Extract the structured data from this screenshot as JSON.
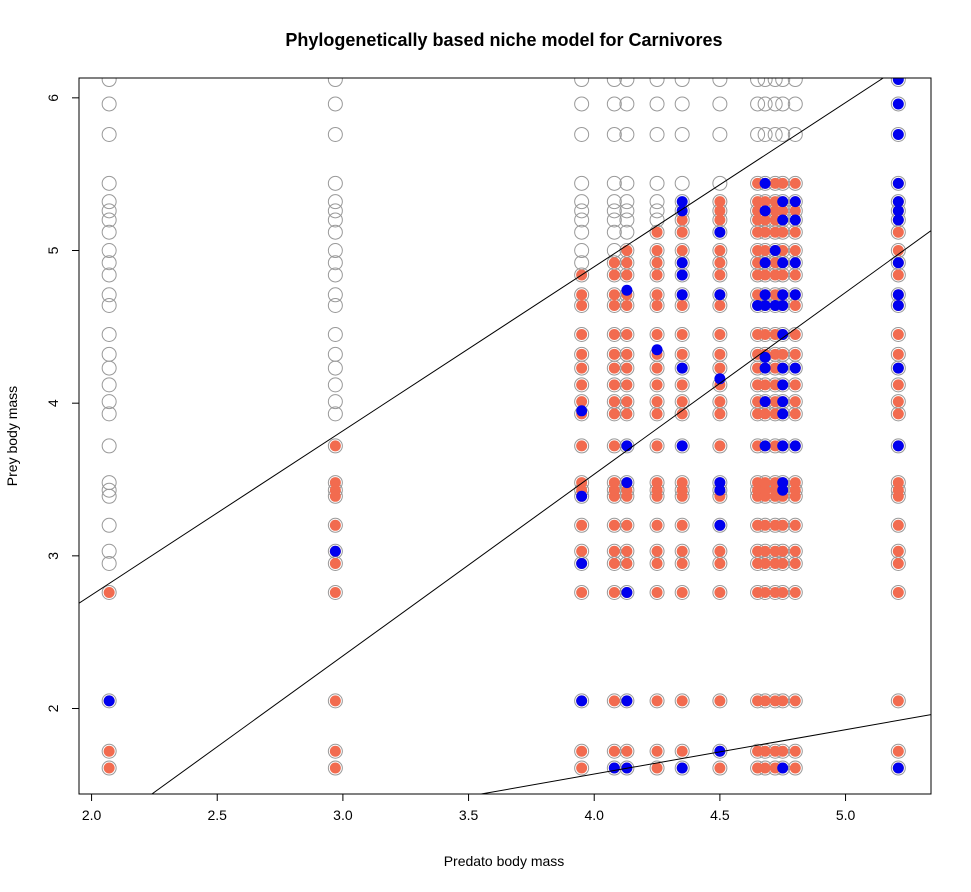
{
  "chart_data": {
    "type": "scatter",
    "title": "Phylogenetically based niche model for Carnivores",
    "xlabel": "Predato body mass",
    "ylabel": "Prey body mass",
    "xlim": [
      1.95,
      5.34
    ],
    "ylim": [
      1.44,
      6.13
    ],
    "xticks": [
      "2.0",
      "2.5",
      "3.0",
      "3.5",
      "4.0",
      "4.5",
      "5.0"
    ],
    "yticks": [
      "2",
      "3",
      "4",
      "5",
      "6"
    ],
    "colors": {
      "candidate": "#999999",
      "predicted": "#f26b4f",
      "observed": "#0000ee",
      "line": "#000000"
    },
    "predator_x": [
      2.07,
      2.97,
      3.95,
      4.08,
      4.13,
      4.25,
      4.35,
      4.5,
      4.65,
      4.68,
      4.72,
      4.75,
      4.8,
      5.21
    ],
    "prey_y": [
      1.61,
      1.72,
      2.05,
      2.76,
      2.95,
      3.03,
      3.2,
      3.39,
      3.43,
      3.48,
      3.72,
      3.93,
      4.01,
      4.12,
      4.23,
      4.32,
      4.45,
      4.64,
      4.71,
      4.84,
      4.92,
      5.0,
      5.12,
      5.2,
      5.26,
      5.32,
      5.44,
      5.76,
      5.96,
      6.12
    ],
    "candidate_ranges": [
      [
        1.61,
        6.12
      ],
      [
        1.61,
        6.12
      ],
      [
        1.61,
        6.12
      ],
      [
        1.61,
        6.12
      ],
      [
        1.61,
        6.12
      ],
      [
        1.61,
        6.12
      ],
      [
        1.61,
        6.12
      ],
      [
        1.61,
        6.12
      ],
      [
        1.61,
        6.12
      ],
      [
        1.61,
        6.12
      ],
      [
        1.61,
        6.12
      ],
      [
        1.61,
        6.12
      ],
      [
        1.61,
        6.12
      ],
      [
        1.61,
        6.12
      ]
    ],
    "predicted_ranges": [
      [
        1.61,
        2.76
      ],
      [
        1.61,
        3.72
      ],
      [
        1.61,
        4.84
      ],
      [
        1.61,
        4.92
      ],
      [
        1.61,
        5.0
      ],
      [
        1.61,
        5.12
      ],
      [
        1.61,
        5.2
      ],
      [
        1.61,
        5.32
      ],
      [
        1.61,
        5.44
      ],
      [
        1.61,
        5.44
      ],
      [
        1.61,
        5.44
      ],
      [
        1.61,
        5.44
      ],
      [
        1.61,
        5.44
      ],
      [
        1.61,
        5.44
      ]
    ],
    "observed_points": [
      [
        2.07,
        2.05
      ],
      [
        2.97,
        3.03
      ],
      [
        3.95,
        2.05
      ],
      [
        3.95,
        2.95
      ],
      [
        3.95,
        3.39
      ],
      [
        3.95,
        3.95
      ],
      [
        4.08,
        1.61
      ],
      [
        4.13,
        1.61
      ],
      [
        4.13,
        2.05
      ],
      [
        4.13,
        2.76
      ],
      [
        4.13,
        3.48
      ],
      [
        4.13,
        3.72
      ],
      [
        4.13,
        4.74
      ],
      [
        4.25,
        4.35
      ],
      [
        4.35,
        1.61
      ],
      [
        4.35,
        3.72
      ],
      [
        4.35,
        4.23
      ],
      [
        4.35,
        4.71
      ],
      [
        4.35,
        4.84
      ],
      [
        4.35,
        4.92
      ],
      [
        4.35,
        5.26
      ],
      [
        4.35,
        5.32
      ],
      [
        4.5,
        1.72
      ],
      [
        4.5,
        3.2
      ],
      [
        4.5,
        3.43
      ],
      [
        4.5,
        3.48
      ],
      [
        4.5,
        4.16
      ],
      [
        4.5,
        4.71
      ],
      [
        4.5,
        5.12
      ],
      [
        4.65,
        4.64
      ],
      [
        4.68,
        3.72
      ],
      [
        4.68,
        4.01
      ],
      [
        4.68,
        4.23
      ],
      [
        4.68,
        4.3
      ],
      [
        4.68,
        4.64
      ],
      [
        4.68,
        4.71
      ],
      [
        4.68,
        4.92
      ],
      [
        4.68,
        5.26
      ],
      [
        4.68,
        5.44
      ],
      [
        4.72,
        4.64
      ],
      [
        4.72,
        5.0
      ],
      [
        4.75,
        1.61
      ],
      [
        4.75,
        3.43
      ],
      [
        4.75,
        3.48
      ],
      [
        4.75,
        3.72
      ],
      [
        4.75,
        3.93
      ],
      [
        4.75,
        4.01
      ],
      [
        4.75,
        4.12
      ],
      [
        4.75,
        4.23
      ],
      [
        4.75,
        4.45
      ],
      [
        4.75,
        4.64
      ],
      [
        4.75,
        4.71
      ],
      [
        4.75,
        4.92
      ],
      [
        4.75,
        5.2
      ],
      [
        4.75,
        5.32
      ],
      [
        4.8,
        3.72
      ],
      [
        4.8,
        4.23
      ],
      [
        4.8,
        4.71
      ],
      [
        4.8,
        4.92
      ],
      [
        4.8,
        5.2
      ],
      [
        4.8,
        5.32
      ],
      [
        5.21,
        1.61
      ],
      [
        5.21,
        3.72
      ],
      [
        5.21,
        4.23
      ],
      [
        5.21,
        4.64
      ],
      [
        5.21,
        4.71
      ],
      [
        5.21,
        4.92
      ],
      [
        5.21,
        5.2
      ],
      [
        5.21,
        5.26
      ],
      [
        5.21,
        5.32
      ],
      [
        5.21,
        5.44
      ],
      [
        5.21,
        5.76
      ],
      [
        5.21,
        5.96
      ],
      [
        5.21,
        6.12
      ]
    ],
    "regression_lines": [
      {
        "points": [
          [
            1.95,
            2.69
          ],
          [
            5.15,
            6.13
          ]
        ]
      },
      {
        "points": [
          [
            2.24,
            1.44
          ],
          [
            5.34,
            5.13
          ]
        ]
      },
      {
        "points": [
          [
            3.55,
            1.44
          ],
          [
            5.34,
            1.96
          ]
        ]
      }
    ],
    "grid": false,
    "legend": "none"
  }
}
